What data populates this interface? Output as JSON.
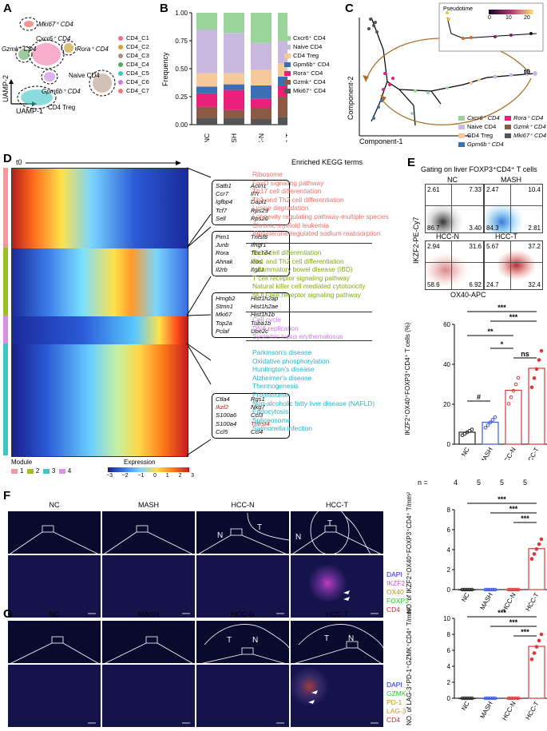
{
  "panels": {
    "A": "A",
    "B": "B",
    "C": "C",
    "D": "D",
    "E": "E",
    "F": "F",
    "G": "G"
  },
  "panelA": {
    "xlabel": "UAMP-1",
    "ylabel": "UAMP-2",
    "cluster_labels": [
      "Mki67⁺ CD4",
      "Cxcr6⁺ CD4",
      "Gzmk⁺ CD4",
      "Rora⁺ CD4",
      "Naive CD4",
      "Gpm6b⁺ CD4",
      "CD4 Treg"
    ],
    "legend": [
      {
        "name": "CD4_C1",
        "color": "#f06a9e"
      },
      {
        "name": "CD4_C2",
        "color": "#c9a23a"
      },
      {
        "name": "CD4_C3",
        "color": "#b08c7a"
      },
      {
        "name": "CD4_C4",
        "color": "#5aa85a"
      },
      {
        "name": "CD4_C5",
        "color": "#3ec6c6"
      },
      {
        "name": "CD4_C6",
        "color": "#c77ee0"
      },
      {
        "name": "CD4_C7",
        "color": "#f07a7a"
      }
    ]
  },
  "panelB": {
    "ylabel": "Frequency",
    "chart_data": {
      "type": "bar",
      "stacked": true,
      "categories": [
        "NC",
        "MASH",
        "HCC-N",
        "HCC-T"
      ],
      "ylim": [
        0,
        1
      ],
      "yticks": [
        "0.00",
        "0.25",
        "0.50",
        "0.75",
        "1.00"
      ],
      "series": [
        {
          "name": "Mki67⁺ CD4",
          "color": "#555555",
          "values": [
            0.06,
            0.06,
            0.05,
            0.07
          ]
        },
        {
          "name": "Gzmk⁺ CD4",
          "color": "#8a5a44",
          "values": [
            0.1,
            0.07,
            0.1,
            0.18
          ]
        },
        {
          "name": "Rora⁺ CD4",
          "color": "#e8207a",
          "values": [
            0.12,
            0.18,
            0.08,
            0.1
          ]
        },
        {
          "name": "Gpm6b⁺ CD4",
          "color": "#3a6fb5",
          "values": [
            0.06,
            0.05,
            0.12,
            0.08
          ]
        },
        {
          "name": "CD4 Treg",
          "color": "#f6c99a",
          "values": [
            0.12,
            0.1,
            0.14,
            0.12
          ]
        },
        {
          "name": "Naive CD4",
          "color": "#c9b8e0",
          "values": [
            0.39,
            0.36,
            0.24,
            0.2
          ]
        },
        {
          "name": "Cxcr6⁺ CD4",
          "color": "#9bd49b",
          "values": [
            0.15,
            0.18,
            0.27,
            0.25
          ]
        }
      ]
    }
  },
  "panelC": {
    "xlabel": "Component-1",
    "ylabel": "Component-2",
    "inset_title": "Pseudotime",
    "inset_ticks": [
      "0",
      "10",
      "20"
    ],
    "t0": "t0",
    "legend": [
      {
        "name": "Cxcr6⁺ CD4",
        "color": "#9bd49b"
      },
      {
        "name": "Rora⁺ CD4",
        "color": "#e8207a"
      },
      {
        "name": "Naive CD4",
        "color": "#c9b8e0"
      },
      {
        "name": "Gzmk⁺ CD4",
        "color": "#8a5a44"
      },
      {
        "name": "CD4 Treg",
        "color": "#f6c99a"
      },
      {
        "name": "Mki67⁺ CD4",
        "color": "#555555"
      },
      {
        "name": "Gpm6b⁺ CD4",
        "color": "#3a6fb5"
      }
    ]
  },
  "panelD": {
    "t0": "t0",
    "kegg_title": "Enriched KEGG terms",
    "modules": [
      {
        "id": "1",
        "color": "#f29a9a",
        "genes": [
          "Satb1",
          "Actn1",
          "Ccr7",
          "Il7r",
          "Igfbp4",
          "Dapl1",
          "Tcf7",
          "Rps29",
          "Sell",
          "Rps20"
        ],
        "terms": [
          "Ribosome",
          "FoxO signaling pathway",
          "Th17 cell differentiation",
          "Th1 and Th2 cell differentiation",
          "Lysine degradation",
          "Longevity regulating pathway-multiple species",
          "Chronic myeloid leukemia",
          "Aldosterone-regulated sodium reabsorption"
        ]
      },
      {
        "id": "2",
        "color": "#9ac21e",
        "genes": [
          "Pim1",
          "Tnfsf8",
          "Junb",
          "Ifngr1",
          "Rora",
          "Tbc1d4",
          "Ahnak",
          "Icos",
          "Il2rb",
          "Itgb1"
        ],
        "terms": [
          "Th17 cell differentiation",
          "Th1 and Th2 cell differentiation",
          "Inflammatory bowel disease (IBD)",
          "T cell receptor signaling pathway",
          "Natural killer cell mediated cytotoxicity",
          "NOD-like receptor signaling pathway"
        ]
      },
      {
        "id": "3",
        "color": "#3ec6c6",
        "genes": [
          "Ctla4",
          "Rgs1",
          "Ikzf2",
          "Nkg7",
          "S100a6",
          "Ccl3",
          "S100a4",
          "Tnfrsf4",
          "Ccl5",
          "Ccl4"
        ],
        "terms": [
          "Parkinson's disease",
          "Oxidative phosphorylation",
          "Huntington's disease",
          "Alzheimer's disease",
          "Thermogenesis",
          "Proteasome",
          "Non-alcoholic fatty liver disease (NAFLD)",
          "Endocytosis",
          "Spliceosome",
          "Salmonella infection"
        ]
      },
      {
        "id": "4",
        "color": "#d88fe8",
        "genes": [
          "Hmgb2",
          "Hist1h2ap",
          "Stmn1",
          "Hist1h2ae",
          "Mki67",
          "Hist1h1b",
          "Top2a",
          "Tuba1b",
          "Pclaf",
          "Ube2c"
        ],
        "terms": [
          "Cell cycle",
          "DNA replication",
          "Systemic lupus erythematosus"
        ]
      }
    ],
    "module_legend_title": "Module",
    "expression_title": "Expression",
    "expression_ticks": [
      "−3",
      "−2",
      "−1",
      "0",
      "1",
      "2",
      "3"
    ]
  },
  "panelE": {
    "title": "Gating on liver FOXP3⁺CD4⁺ T cells",
    "ylabel": "IKZF2-PE-Cy7",
    "xlabel": "OX40-APC",
    "flow": [
      {
        "name": "NC",
        "q": [
          "2.61",
          "7.33",
          "86.7",
          "3.40"
        ]
      },
      {
        "name": "MASH",
        "q": [
          "2.47",
          "10.4",
          "84.3",
          "2.81"
        ]
      },
      {
        "name": "HCC-N",
        "q": [
          "2.94",
          "31.6",
          "58.6",
          "6.92"
        ]
      },
      {
        "name": "HCC-T",
        "q": [
          "5.67",
          "37.2",
          "24.7",
          "32.4"
        ]
      }
    ],
    "bar_ylabel": "IKZF2⁺OX40⁺FOXP3⁺CD4⁺ T cells (%)",
    "n_label": "n =",
    "chart_data": {
      "type": "bar",
      "categories": [
        "NC",
        "MASH",
        "HCC-N",
        "HCC-T"
      ],
      "values": [
        6,
        11,
        27,
        38
      ],
      "n": [
        "4",
        "5",
        "5",
        "5"
      ],
      "ylim": [
        0,
        60
      ],
      "yticks": [
        "0",
        "20",
        "40",
        "60"
      ],
      "significance": [
        "***",
        "***",
        "**",
        "*",
        "ns",
        "#"
      ]
    }
  },
  "panelF": {
    "groups": [
      "NC",
      "MASH",
      "HCC-N",
      "HCC-T"
    ],
    "region_labels": [
      "N",
      "T",
      "N",
      "T"
    ],
    "channels": [
      {
        "name": "DAPI",
        "color": "#1a1ae6"
      },
      {
        "name": "IKZF2",
        "color": "#e64ae6"
      },
      {
        "name": "OX40",
        "color": "#c8a000"
      },
      {
        "name": "FOXP3",
        "color": "#22cc22"
      },
      {
        "name": "CD4",
        "color": "#e62222"
      }
    ],
    "bar_ylabel": "NO. of IKZF2⁺OX40⁺FOXP3⁺CD4⁺ T/mm²",
    "chart_data": {
      "type": "bar",
      "categories": [
        "NC",
        "MASH",
        "HCC-N",
        "HCC-T"
      ],
      "values": [
        0,
        0,
        0,
        4.1
      ],
      "ylim": [
        0,
        8
      ],
      "yticks": [
        "0",
        "2",
        "4",
        "6",
        "8"
      ],
      "significance": [
        "***",
        "***",
        "***"
      ]
    }
  },
  "panelG": {
    "groups": [
      "NC",
      "MASH",
      "HCC-N",
      "HCC-T"
    ],
    "region_labels": [
      "T",
      "N",
      "T",
      "N"
    ],
    "channels": [
      {
        "name": "DAPI",
        "color": "#1a1ae6"
      },
      {
        "name": "GZMK",
        "color": "#22cc22"
      },
      {
        "name": "PD-1",
        "color": "#c8a000"
      },
      {
        "name": "LAG-3",
        "color": "#e68a1a"
      },
      {
        "name": "CD4",
        "color": "#e62222"
      }
    ],
    "bar_ylabel": "NO. of LAG-3⁺PD-1⁺GZMK⁺CD4⁺ T/mm²",
    "chart_data": {
      "type": "bar",
      "categories": [
        "NC",
        "MASH",
        "HCC-N",
        "HCC-T"
      ],
      "values": [
        0,
        0,
        0,
        6.5
      ],
      "ylim": [
        0,
        10
      ],
      "yticks": [
        "0",
        "2",
        "4",
        "6",
        "8",
        "10"
      ],
      "significance": [
        "***",
        "***",
        "***"
      ]
    }
  }
}
